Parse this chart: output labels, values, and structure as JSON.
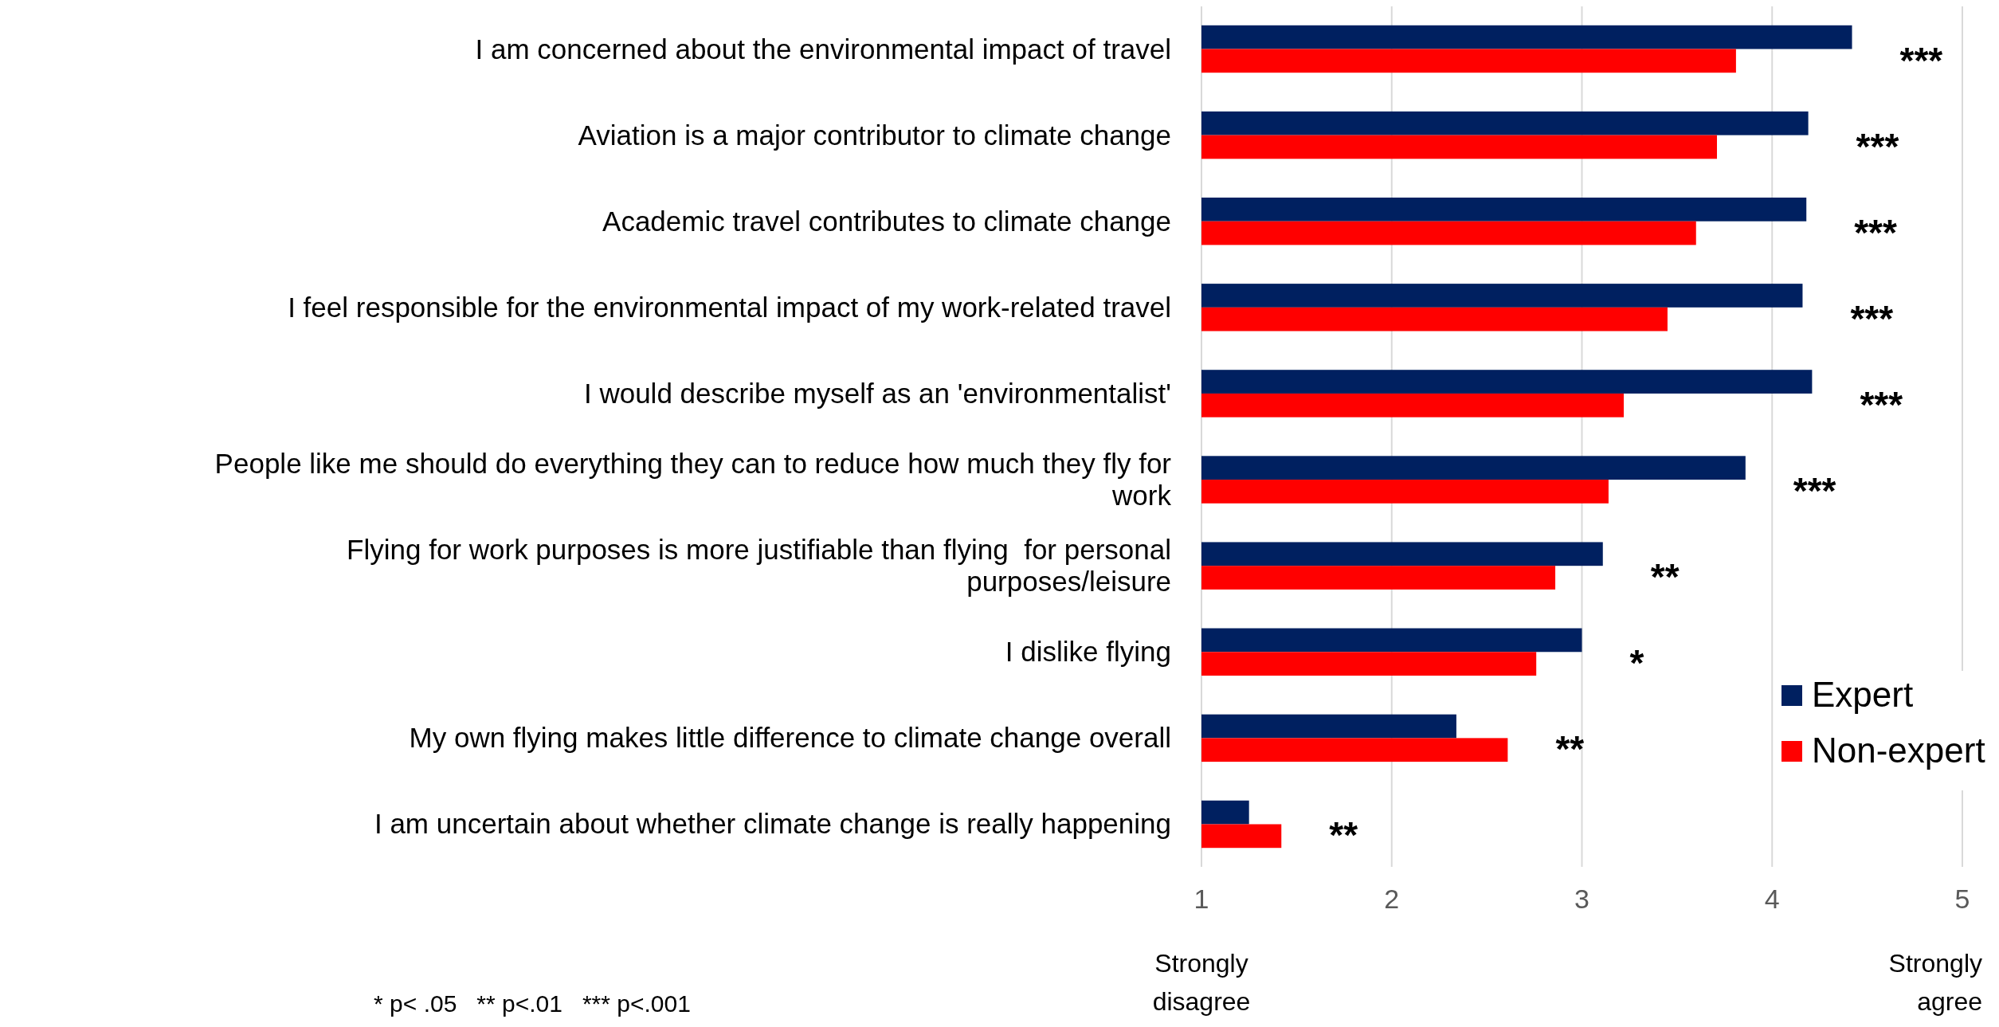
{
  "chart_data": {
    "type": "bar",
    "orientation": "horizontal",
    "categories": [
      "I am concerned about the environmental impact of travel",
      "Aviation is a major contributor to climate change",
      "Academic travel contributes to climate change",
      "I feel responsible for the environmental impact of my work-related travel",
      "I would describe myself as an 'environmentalist'",
      "People like me should do everything they can to reduce how much they fly for work",
      "Flying for work purposes is more justifiable than flying  for personal purposes/leisure",
      "I dislike flying",
      "My own flying makes little difference to climate change overall",
      "I am uncertain about whether climate change is really happening"
    ],
    "series": [
      {
        "name": "Expert",
        "color": "#002060",
        "values": [
          4.42,
          4.19,
          4.18,
          4.16,
          4.21,
          3.86,
          3.11,
          3.0,
          2.34,
          1.25
        ]
      },
      {
        "name": "Non-expert",
        "color": "#ff0000",
        "values": [
          3.81,
          3.71,
          3.6,
          3.45,
          3.22,
          3.14,
          2.86,
          2.76,
          2.61,
          1.42
        ]
      }
    ],
    "xlim": [
      1,
      5
    ],
    "xticks": [
      1,
      2,
      3,
      4,
      5
    ],
    "grid": "x",
    "legend": "bottom right",
    "annotations": [
      "***",
      "***",
      "***",
      "***",
      "***",
      "***",
      "**",
      "*",
      "**",
      "**",
      "Strongly disagree",
      "Strongly agree",
      "* p< .05   ** p<.01   *** p<.001"
    ]
  }
}
